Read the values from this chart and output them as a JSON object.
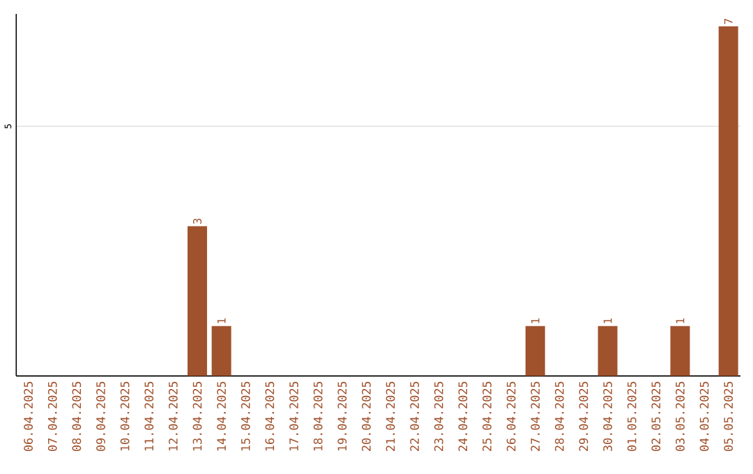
{
  "chart_data": {
    "type": "bar",
    "categories": [
      "06.04.2025",
      "07.04.2025",
      "08.04.2025",
      "09.04.2025",
      "10.04.2025",
      "11.04.2025",
      "12.04.2025",
      "13.04.2025",
      "14.04.2025",
      "15.04.2025",
      "16.04.2025",
      "17.04.2025",
      "18.04.2025",
      "19.04.2025",
      "20.04.2025",
      "21.04.2025",
      "22.04.2025",
      "23.04.2025",
      "24.04.2025",
      "25.04.2025",
      "26.04.2025",
      "27.04.2025",
      "28.04.2025",
      "29.04.2025",
      "30.04.2025",
      "01.05.2025",
      "02.05.2025",
      "03.05.2025",
      "04.05.2025",
      "05.05.2025"
    ],
    "values": [
      0,
      0,
      0,
      0,
      0,
      0,
      0,
      3,
      1,
      0,
      0,
      0,
      0,
      0,
      0,
      0,
      0,
      0,
      0,
      0,
      0,
      1,
      0,
      0,
      1,
      0,
      0,
      1,
      0,
      7
    ],
    "value_labels": [
      null,
      null,
      null,
      null,
      null,
      null,
      null,
      "3",
      "1",
      null,
      null,
      null,
      null,
      null,
      null,
      null,
      null,
      null,
      null,
      null,
      null,
      "1",
      null,
      null,
      "1",
      null,
      null,
      "1",
      null,
      "7"
    ],
    "color": "#a0522d",
    "ylim": [
      0,
      7.25
    ],
    "yticks": [
      5
    ],
    "grid": "y"
  }
}
